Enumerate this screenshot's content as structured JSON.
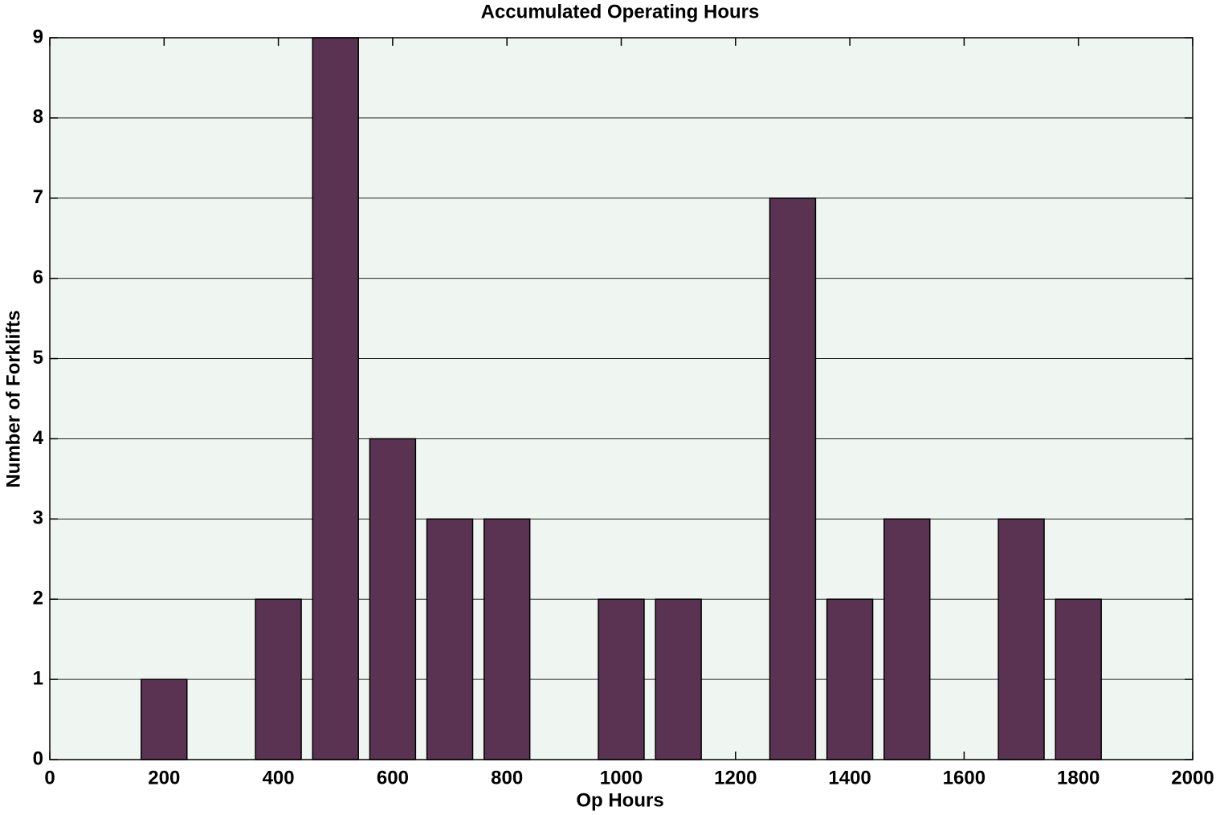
{
  "chart_data": {
    "type": "bar",
    "title": "Accumulated Operating Hours",
    "x_label": "Op Hours",
    "y_label": "Number of Forklifts",
    "x": [
      200,
      400,
      500,
      600,
      700,
      800,
      1000,
      1100,
      1300,
      1400,
      1500,
      1700,
      1800
    ],
    "values": [
      1,
      2,
      9,
      4,
      3,
      3,
      2,
      2,
      7,
      2,
      3,
      3,
      2
    ],
    "color": "#5a3352",
    "xlim": [
      0,
      2000
    ],
    "xticks": [
      0,
      200,
      400,
      600,
      800,
      1000,
      1200,
      1400,
      1600,
      1800,
      2000
    ],
    "ylim": [
      0,
      9
    ],
    "yticks": [
      0,
      1,
      2,
      3,
      4,
      5,
      6,
      7,
      8,
      9
    ],
    "grid": true
  }
}
